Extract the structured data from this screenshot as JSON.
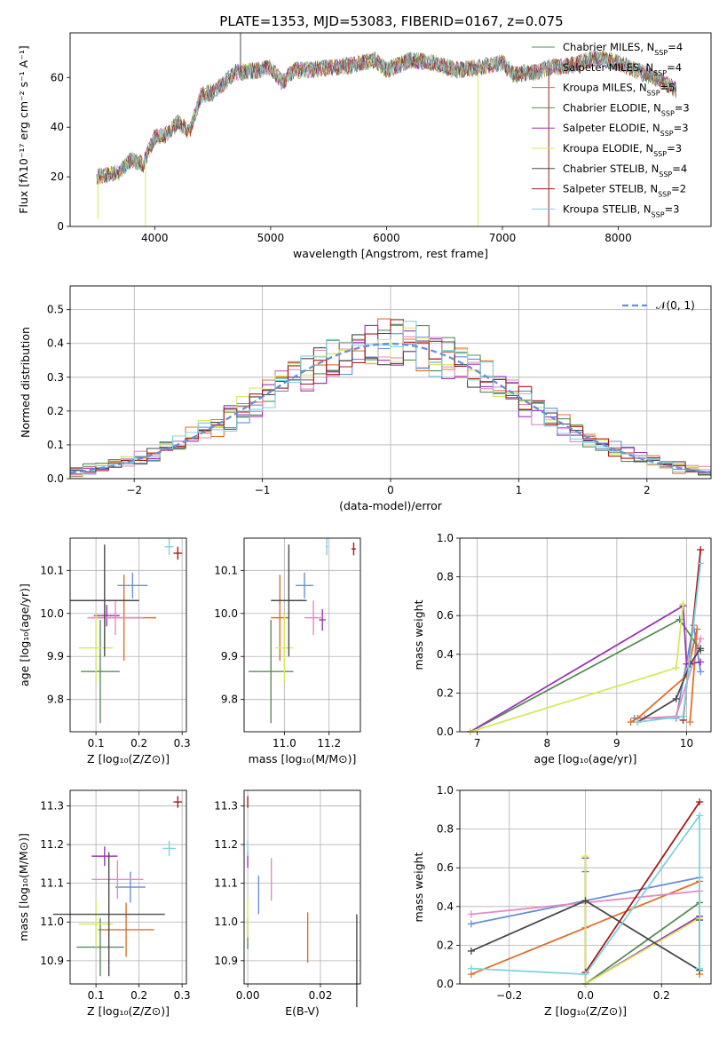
{
  "title": "PLATE=1353, MJD=53083, FIBERID=0167, z=0.075",
  "colors": [
    "#6a8fd6",
    "#e0702a",
    "#5b8c5a",
    "#9b36b7",
    "#e58ac0",
    "#d4ea5a",
    "#4a4a4a",
    "#a61c1c",
    "#7fd3e0"
  ],
  "chart_data": [
    {
      "id": "spectrum",
      "type": "line",
      "xlabel": "wavelength [Angstrom, rest frame]",
      "ylabel": "Flux [fλ10⁻¹⁷ erg cm⁻² s⁻¹ A⁻¹]",
      "xlim": [
        3270,
        8800
      ],
      "ylim": [
        0,
        78
      ],
      "xticks": [
        4000,
        5000,
        6000,
        7000,
        8000
      ],
      "yticks": [
        0,
        20,
        40,
        60
      ],
      "grid": false,
      "legend_position": "top-right",
      "legend": [
        "Chabrier MILES, N_SSP=4",
        "Salpeter MILES, N_SSP=4",
        "Kroupa MILES, N_SSP=5",
        "Chabrier ELODIE, N_SSP=3",
        "Salpeter ELODIE, N_SSP=3",
        "Kroupa ELODIE, N_SSP=3",
        "Chabrier STELIB, N_SSP=4",
        "Salpeter STELIB, N_SSP=2",
        "Kroupa STELIB, N_SSP=3"
      ],
      "legend_colors": [
        "#5b8c5a",
        "#e58ac0",
        "#c08a2a",
        "#5b8c5a",
        "#9b36b7",
        "#d4ea5a",
        "#4a4a4a",
        "#a61c1c",
        "#7fd3e0"
      ],
      "continuum": {
        "x": [
          3500,
          3600,
          3700,
          3800,
          3900,
          4000,
          4100,
          4200,
          4300,
          4400,
          4500,
          4700,
          4900,
          5000,
          5100,
          5200,
          5300,
          5500,
          5700,
          5900,
          6000,
          6200,
          6400,
          6600,
          6800,
          7000,
          7100,
          7200,
          7300,
          7400,
          7600,
          7800,
          8000,
          8200,
          8400,
          8500
        ],
        "y": [
          20,
          21,
          22,
          27,
          25,
          36,
          37,
          42,
          38,
          53,
          54,
          62,
          63,
          64,
          58,
          63,
          63,
          64,
          65,
          67,
          63,
          67,
          66,
          63,
          64,
          66,
          61,
          62,
          62,
          64,
          65,
          68,
          66,
          62,
          58,
          55
        ]
      },
      "spikes": [
        {
          "x": 3510,
          "y": 3
        },
        {
          "x": 3920,
          "y": 0
        },
        {
          "x": 4740,
          "y": 78
        },
        {
          "x": 6790,
          "y": 0
        },
        {
          "x": 7400,
          "y": 0
        }
      ]
    },
    {
      "id": "residuals",
      "type": "histogram",
      "xlabel": "(data-model)/error",
      "ylabel": "Normed distribution",
      "xlim": [
        -2.5,
        2.5
      ],
      "ylim": [
        0,
        0.57
      ],
      "xticks": [
        -2,
        -1,
        0,
        1,
        2
      ],
      "xtick_labels": [
        "−2",
        "−1",
        "0",
        "1",
        "2"
      ],
      "yticks": [
        0.0,
        0.1,
        0.2,
        0.3,
        0.4,
        0.5
      ],
      "ytick_labels": [
        "0.0",
        "0.1",
        "0.2",
        "0.3",
        "0.4",
        "0.5"
      ],
      "grid": true,
      "legend_position": "top-right",
      "reference_curve": {
        "name": "𝒩(0, 1)",
        "mean": 0,
        "sigma": 1,
        "color": "#6a8fd6"
      },
      "bin_width": 0.1
    },
    {
      "id": "age_vs_Z",
      "type": "errorbar",
      "xlabel": "Z [log₁₀(Z/Z⊙)]",
      "ylabel": "age  [log₁₀(age/yr)]",
      "xlim": [
        0.04,
        0.31
      ],
      "ylim": [
        9.725,
        10.175
      ],
      "xticks": [
        0.1,
        0.2,
        0.3
      ],
      "yticks": [
        9.8,
        9.9,
        10.0,
        10.1
      ],
      "grid": true,
      "points": [
        {
          "x": 0.185,
          "y": 10.065,
          "xerr": 0.035,
          "yerr": 0.03,
          "c": 0
        },
        {
          "x": 0.165,
          "y": 9.99,
          "xerr": 0.075,
          "yerr": 0.1,
          "c": 1
        },
        {
          "x": 0.11,
          "y": 9.865,
          "xerr": 0.045,
          "yerr": 0.12,
          "c": 2
        },
        {
          "x": 0.125,
          "y": 9.995,
          "xerr": 0.03,
          "yerr": 0.025,
          "c": 3
        },
        {
          "x": 0.145,
          "y": 9.99,
          "xerr": 0.065,
          "yerr": 0.04,
          "c": 4
        },
        {
          "x": 0.1,
          "y": 9.92,
          "xerr": 0.04,
          "yerr": 0.08,
          "c": 5
        },
        {
          "x": 0.12,
          "y": 10.03,
          "xerr": 0.08,
          "yerr": 0.13,
          "c": 6
        },
        {
          "x": 0.29,
          "y": 10.14,
          "xerr": 0.01,
          "yerr": 0.015,
          "c": 7
        },
        {
          "x": 0.27,
          "y": 10.155,
          "xerr": 0.01,
          "yerr": 0.02,
          "c": 8
        }
      ]
    },
    {
      "id": "age_vs_mass",
      "type": "errorbar",
      "xlabel": "mass [log₁₀(M/M⊙)]",
      "xlim": [
        10.82,
        11.34
      ],
      "ylim": [
        9.725,
        10.175
      ],
      "xticks": [
        11.0,
        11.2
      ],
      "yticks": [
        9.8,
        9.9,
        10.0,
        10.1
      ],
      "grid": true,
      "points": [
        {
          "x": 11.09,
          "y": 10.065,
          "xerr": 0.04,
          "yerr": 0.03,
          "c": 0
        },
        {
          "x": 10.98,
          "y": 9.99,
          "xerr": 0.04,
          "yerr": 0.1,
          "c": 1
        },
        {
          "x": 10.94,
          "y": 9.865,
          "xerr": 0.1,
          "yerr": 0.12,
          "c": 2
        },
        {
          "x": 11.17,
          "y": 9.985,
          "xerr": 0.015,
          "yerr": 0.025,
          "c": 3
        },
        {
          "x": 11.13,
          "y": 9.99,
          "xerr": 0.04,
          "yerr": 0.04,
          "c": 4
        },
        {
          "x": 11.0,
          "y": 9.92,
          "xerr": 0.04,
          "yerr": 0.08,
          "c": 5
        },
        {
          "x": 11.02,
          "y": 10.03,
          "xerr": 0.08,
          "yerr": 0.13,
          "c": 6
        },
        {
          "x": 11.31,
          "y": 10.15,
          "xerr": 0.01,
          "yerr": 0.015,
          "c": 7
        },
        {
          "x": 11.19,
          "y": 10.155,
          "xerr": 0.005,
          "yerr": 0.02,
          "c": 8
        }
      ]
    },
    {
      "id": "weight_vs_age",
      "type": "line",
      "xlabel": "age  [log₁₀(age/yr)]",
      "ylabel": "mass weight",
      "xlim": [
        6.75,
        10.35
      ],
      "ylim": [
        0,
        1
      ],
      "xticks": [
        7,
        8,
        9,
        10
      ],
      "yticks": [
        0.0,
        0.2,
        0.4,
        0.6,
        0.8,
        1.0
      ],
      "grid": true,
      "series": [
        {
          "c": 0,
          "x": [
            9.25,
            9.85,
            10.1,
            10.2
          ],
          "y": [
            0.07,
            0.07,
            0.55,
            0.31
          ]
        },
        {
          "c": 1,
          "x": [
            9.2,
            9.3,
            10.0,
            10.15,
            10.05
          ],
          "y": [
            0.05,
            0.07,
            0.29,
            0.53,
            0.05
          ]
        },
        {
          "c": 2,
          "x": [
            6.9,
            9.9,
            10.2
          ],
          "y": [
            0.0,
            0.58,
            0.42
          ]
        },
        {
          "c": 3,
          "x": [
            6.9,
            9.95,
            10.0,
            10.2
          ],
          "y": [
            0.0,
            0.65,
            0.35,
            0.36
          ]
        },
        {
          "c": 4,
          "x": [
            9.4,
            9.85,
            10.2
          ],
          "y": [
            0.07,
            0.08,
            0.48
          ]
        },
        {
          "c": 5,
          "x": [
            6.9,
            9.85,
            9.95
          ],
          "y": [
            0.0,
            0.33,
            0.66
          ]
        },
        {
          "c": 6,
          "x": [
            9.3,
            9.85,
            10.05,
            10.2
          ],
          "y": [
            0.05,
            0.17,
            0.35,
            0.43
          ]
        },
        {
          "c": 7,
          "x": [
            9.95,
            10.2
          ],
          "y": [
            0.06,
            0.94
          ]
        },
        {
          "c": 8,
          "x": [
            9.3,
            9.95,
            10.2
          ],
          "y": [
            0.05,
            0.08,
            0.87
          ]
        }
      ]
    },
    {
      "id": "mass_vs_Z",
      "type": "errorbar",
      "xlabel": "Z [log₁₀(Z/Z⊙)]",
      "ylabel": "mass [log₁₀(M/M⊙)]",
      "xlim": [
        0.04,
        0.31
      ],
      "ylim": [
        10.84,
        11.34
      ],
      "xticks": [
        0.1,
        0.2,
        0.3
      ],
      "yticks": [
        10.9,
        11.0,
        11.1,
        11.2,
        11.3
      ],
      "grid": true,
      "points": [
        {
          "x": 0.18,
          "y": 11.09,
          "xerr": 0.035,
          "yerr": 0.04,
          "c": 0
        },
        {
          "x": 0.17,
          "y": 10.98,
          "xerr": 0.065,
          "yerr": 0.07,
          "c": 1
        },
        {
          "x": 0.11,
          "y": 10.935,
          "xerr": 0.055,
          "yerr": 0.075,
          "c": 2
        },
        {
          "x": 0.12,
          "y": 11.17,
          "xerr": 0.03,
          "yerr": 0.025,
          "c": 3
        },
        {
          "x": 0.15,
          "y": 11.11,
          "xerr": 0.06,
          "yerr": 0.05,
          "c": 4
        },
        {
          "x": 0.1,
          "y": 10.995,
          "xerr": 0.04,
          "yerr": 0.06,
          "c": 5
        },
        {
          "x": 0.13,
          "y": 11.02,
          "xerr": 0.13,
          "yerr": 0.16,
          "c": 6
        },
        {
          "x": 0.29,
          "y": 11.31,
          "xerr": 0.01,
          "yerr": 0.015,
          "c": 7
        },
        {
          "x": 0.27,
          "y": 11.19,
          "xerr": 0.015,
          "yerr": 0.02,
          "c": 8
        }
      ]
    },
    {
      "id": "mass_vs_ebv",
      "type": "errorbar",
      "xlabel": "E(B-V)",
      "xlim": [
        -0.001,
        0.031
      ],
      "ylim": [
        10.84,
        11.34
      ],
      "xticks": [
        0.0,
        0.02
      ],
      "xtick_labels": [
        "0.00",
        "0.02"
      ],
      "yticks": [
        10.9,
        11.0,
        11.1,
        11.2,
        11.3
      ],
      "grid": true,
      "points": [
        {
          "x": 0.003,
          "y": 11.07,
          "xerr": 0.0,
          "yerr": 0.05,
          "c": 0
        },
        {
          "x": 0.0165,
          "y": 10.96,
          "xerr": 0.0,
          "yerr": 0.065,
          "c": 1
        },
        {
          "x": 0.0,
          "y": 10.97,
          "xerr": 0.0,
          "yerr": 0.04,
          "c": 2
        },
        {
          "x": 0.0,
          "y": 11.16,
          "xerr": 0.0,
          "yerr": 0.02,
          "c": 3
        },
        {
          "x": 0.0065,
          "y": 11.11,
          "xerr": 0.0,
          "yerr": 0.055,
          "c": 4
        },
        {
          "x": 0.0,
          "y": 11.01,
          "xerr": 0.0,
          "yerr": 0.05,
          "c": 5
        },
        {
          "x": 0.03,
          "y": 10.9,
          "xerr": 0.0,
          "yerr": 0.12,
          "c": 6
        },
        {
          "x": 0.0,
          "y": 11.31,
          "xerr": 0.0,
          "yerr": 0.015,
          "c": 7
        },
        {
          "x": 0.0,
          "y": 11.19,
          "xerr": 0.0,
          "yerr": 0.02,
          "c": 8
        }
      ]
    },
    {
      "id": "weight_vs_Z",
      "type": "line",
      "xlabel": "Z [log₁₀(Z/Z⊙)]",
      "ylabel": "mass weight",
      "xlim": [
        -0.33,
        0.33
      ],
      "ylim": [
        0,
        1
      ],
      "xticks": [
        -0.2,
        0.0,
        0.2
      ],
      "xtick_labels": [
        "−0.2",
        "0.0",
        "0.2"
      ],
      "yticks": [
        0.0,
        0.2,
        0.4,
        0.6,
        0.8,
        1.0
      ],
      "grid": true,
      "series": [
        {
          "c": 0,
          "x": [
            -0.3,
            0.0,
            0.3
          ],
          "y": [
            0.31,
            0.43,
            0.55
          ]
        },
        {
          "c": 1,
          "x": [
            -0.3,
            0.0,
            0.3,
            0.3
          ],
          "y": [
            0.05,
            0.29,
            0.53,
            0.05
          ]
        },
        {
          "c": 2,
          "x": [
            0.0,
            0.0,
            0.3
          ],
          "y": [
            0.58,
            0.0,
            0.42
          ]
        },
        {
          "c": 3,
          "x": [
            0.0,
            0.0,
            0.3
          ],
          "y": [
            0.65,
            0.0,
            0.35
          ]
        },
        {
          "c": 4,
          "x": [
            -0.3,
            0.3
          ],
          "y": [
            0.36,
            0.48
          ]
        },
        {
          "c": 5,
          "x": [
            0.0,
            0.0,
            0.3
          ],
          "y": [
            0.66,
            0.0,
            0.34
          ]
        },
        {
          "c": 6,
          "x": [
            -0.3,
            0.0,
            0.3,
            0.3
          ],
          "y": [
            0.17,
            0.43,
            0.07,
            0.33
          ]
        },
        {
          "c": 7,
          "x": [
            0.0,
            0.3
          ],
          "y": [
            0.06,
            0.94
          ]
        },
        {
          "c": 8,
          "x": [
            -0.3,
            0.0,
            0.3,
            0.3
          ],
          "y": [
            0.08,
            0.05,
            0.87,
            0.08
          ]
        }
      ]
    }
  ]
}
